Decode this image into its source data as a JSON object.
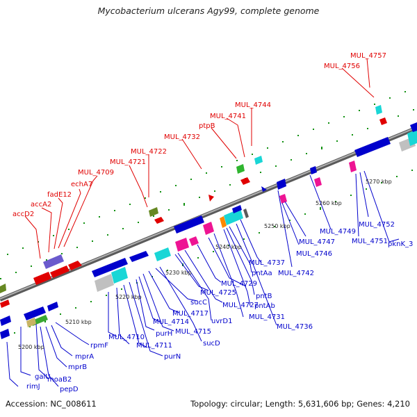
{
  "title": "Mycobacterium ulcerans Agy99, complete genome",
  "footer": {
    "accession": "Accession: NC_008611",
    "stats": "Topology: circular; Length: 5,631,606 bp; Genes: 4,210"
  },
  "colors": {
    "forward_strand": "#e00000",
    "reverse_strand": "#0000cc",
    "backbone": "#808080",
    "tick": "#109010"
  },
  "kbp_labels": [
    "5200 kbp",
    "5210 kbp",
    "5220 kbp",
    "5230 kbp",
    "5240 kbp",
    "5250 kbp",
    "5260 kbp",
    "5270 kbp"
  ],
  "forward_genes": [
    "accD2",
    "accA2",
    "fadE12",
    "echA7",
    "MUL_4709",
    "MUL_4721",
    "MUL_4722",
    "MUL_4732",
    "ptpB",
    "MUL_4741",
    "MUL_4744",
    "MUL_4756",
    "MUL_4757"
  ],
  "reverse_genes": [
    "rimJ",
    "galU",
    "moaB2",
    "pepD",
    "mprB",
    "mprA",
    "rpmF",
    "MUL_4710",
    "MUL_4711",
    "purN",
    "purH",
    "MUL_4714",
    "MUL_4715",
    "MUL_4717",
    "sucC",
    "sucD",
    "MUL_4725",
    "uvrD1",
    "MUL_4727",
    "MUL_4729",
    "MUL_4731",
    "pntAb",
    "pntB",
    "pntAa",
    "MUL_4736",
    "MUL_4737",
    "MUL_4742",
    "MUL_4746",
    "MUL_4747",
    "MUL_4749",
    "MUL_4751",
    "MUL_4752",
    "pknK_3"
  ]
}
